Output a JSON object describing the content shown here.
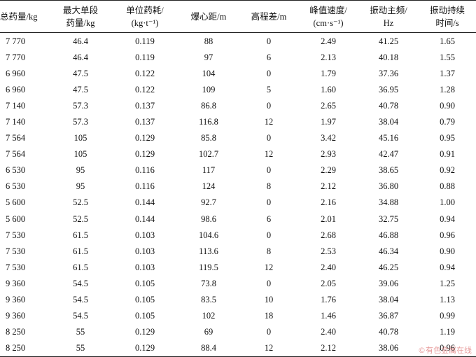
{
  "headers": {
    "col0": {
      "l1": "总药量/kg",
      "l2": ""
    },
    "col1": {
      "l1": "最大单段",
      "l2": "药量/kg"
    },
    "col2": {
      "l1": "单位药耗/",
      "l2": "(kg·t⁻¹)"
    },
    "col3": {
      "l1": "爆心距/m",
      "l2": ""
    },
    "col4": {
      "l1": "高程差/m",
      "l2": ""
    },
    "col5": {
      "l1": "峰值速度/",
      "l2": "(cm·s⁻¹)"
    },
    "col6": {
      "l1": "振动主频/",
      "l2": "Hz"
    },
    "col7": {
      "l1": "振动持续",
      "l2": "时间/s"
    }
  },
  "rows": [
    [
      "7 770",
      "46.4",
      "0.119",
      "88",
      "0",
      "2.49",
      "41.25",
      "1.65"
    ],
    [
      "7 770",
      "46.4",
      "0.119",
      "97",
      "6",
      "2.13",
      "40.18",
      "1.55"
    ],
    [
      "6 960",
      "47.5",
      "0.122",
      "104",
      "0",
      "1.79",
      "37.36",
      "1.37"
    ],
    [
      "6 960",
      "47.5",
      "0.122",
      "109",
      "5",
      "1.60",
      "36.95",
      "1.28"
    ],
    [
      "7 140",
      "57.3",
      "0.137",
      "86.8",
      "0",
      "2.65",
      "40.78",
      "0.90"
    ],
    [
      "7 140",
      "57.3",
      "0.137",
      "116.8",
      "12",
      "1.97",
      "38.04",
      "0.79"
    ],
    [
      "7 564",
      "105",
      "0.129",
      "85.8",
      "0",
      "3.42",
      "45.16",
      "0.95"
    ],
    [
      "7 564",
      "105",
      "0.129",
      "102.7",
      "12",
      "2.93",
      "42.47",
      "0.91"
    ],
    [
      "6 530",
      "95",
      "0.116",
      "117",
      "0",
      "2.29",
      "38.65",
      "0.92"
    ],
    [
      "6 530",
      "95",
      "0.116",
      "124",
      "8",
      "2.12",
      "36.80",
      "0.88"
    ],
    [
      "5 600",
      "52.5",
      "0.144",
      "92.7",
      "0",
      "2.16",
      "34.88",
      "1.00"
    ],
    [
      "5 600",
      "52.5",
      "0.144",
      "98.6",
      "6",
      "2.01",
      "32.75",
      "0.94"
    ],
    [
      "7 530",
      "61.5",
      "0.103",
      "104.6",
      "0",
      "2.68",
      "46.88",
      "0.96"
    ],
    [
      "7 530",
      "61.5",
      "0.103",
      "113.6",
      "8",
      "2.53",
      "46.34",
      "0.90"
    ],
    [
      "7 530",
      "61.5",
      "0.103",
      "119.5",
      "12",
      "2.40",
      "46.25",
      "0.94"
    ],
    [
      "9 360",
      "54.5",
      "0.105",
      "73.8",
      "0",
      "2.05",
      "39.06",
      "1.25"
    ],
    [
      "9 360",
      "54.5",
      "0.105",
      "83.5",
      "10",
      "1.76",
      "38.04",
      "1.13"
    ],
    [
      "9 360",
      "54.5",
      "0.105",
      "102",
      "18",
      "1.46",
      "36.87",
      "0.99"
    ],
    [
      "8 250",
      "55",
      "0.129",
      "69",
      "0",
      "2.40",
      "40.78",
      "1.19"
    ],
    [
      "8 250",
      "55",
      "0.129",
      "88.4",
      "12",
      "2.12",
      "38.06",
      "0.96"
    ]
  ],
  "watermark": "©有色金属在线"
}
